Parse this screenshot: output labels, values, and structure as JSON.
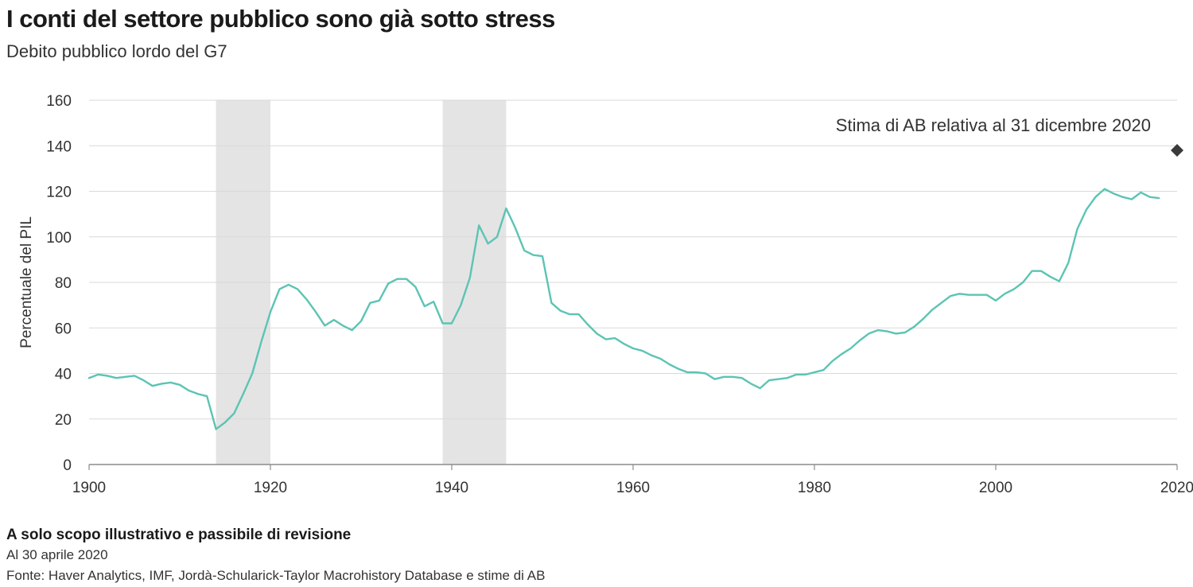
{
  "header": {
    "title": "I conti del settore pubblico sono già sotto stress",
    "subtitle": "Debito pubblico lordo del G7"
  },
  "footer": {
    "note": "A solo scopo illustrativo e passibile di revisione",
    "date": "Al 30 aprile 2020",
    "source": "Fonte: Haver Analytics, IMF, Jordà-Schularick-Taylor Macrohistory Database e stime di AB"
  },
  "colors": {
    "line": "#5cc4b4",
    "shade": "#e4e4e4",
    "grid": "#d9d9d9",
    "marker": "#3a3a3a"
  },
  "chart_data": {
    "type": "line",
    "ylabel": "Percentuale del PIL",
    "xlim": [
      1900,
      2020
    ],
    "ylim": [
      0,
      160
    ],
    "x_ticks": [
      1900,
      1920,
      1940,
      1960,
      1980,
      2000,
      2020
    ],
    "y_ticks": [
      0,
      20,
      40,
      60,
      80,
      100,
      120,
      140,
      160
    ],
    "grid": true,
    "shaded_periods": [
      {
        "start": 1914,
        "end": 1920
      },
      {
        "start": 1939,
        "end": 1946
      }
    ],
    "series": [
      {
        "x": [
          1900,
          1901,
          1902,
          1903,
          1904,
          1905,
          1906,
          1907,
          1908,
          1909,
          1910,
          1911,
          1912,
          1913,
          1914,
          1915,
          1916,
          1917,
          1918,
          1919,
          1920,
          1921,
          1922,
          1923,
          1924,
          1925,
          1926,
          1927,
          1928,
          1929,
          1930,
          1931,
          1932,
          1933,
          1934,
          1935,
          1936,
          1937,
          1938,
          1939,
          1940,
          1941,
          1942,
          1943,
          1944,
          1945,
          1946,
          1947,
          1948,
          1949,
          1950,
          1951,
          1952,
          1953,
          1954,
          1955,
          1956,
          1957,
          1958,
          1959,
          1960,
          1961,
          1962,
          1963,
          1964,
          1965,
          1966,
          1967,
          1968,
          1969,
          1970,
          1971,
          1972,
          1973,
          1974,
          1975,
          1976,
          1977,
          1978,
          1979,
          1980,
          1981,
          1982,
          1983,
          1984,
          1985,
          1986,
          1987,
          1988,
          1989,
          1990,
          1991,
          1992,
          1993,
          1994,
          1995,
          1996,
          1997,
          1998,
          1999,
          2000,
          2001,
          2002,
          2003,
          2004,
          2005,
          2006,
          2007,
          2008,
          2009,
          2010,
          2011,
          2012,
          2013,
          2014,
          2015,
          2016,
          2017,
          2018
        ],
        "values": [
          38,
          39.5,
          39,
          38,
          38.5,
          39,
          37,
          34.5,
          35.5,
          36,
          35,
          32.5,
          31,
          30,
          15.5,
          18.5,
          22.5,
          31,
          40,
          54,
          67,
          77,
          79,
          77,
          72.5,
          67,
          61,
          63.5,
          61,
          59,
          63,
          71,
          72,
          79.5,
          81.5,
          81.5,
          78,
          69.5,
          71.5,
          62,
          62,
          70,
          82,
          105,
          97,
          100,
          112.5,
          104,
          94,
          92,
          91.5,
          71,
          67.5,
          66,
          66,
          61.5,
          57.5,
          55,
          55.5,
          53,
          51,
          50,
          48,
          46.5,
          44,
          42,
          40.5,
          40.5,
          40,
          37.5,
          38.5,
          38.5,
          38,
          35.5,
          33.5,
          37,
          37.5,
          38,
          39.5,
          39.5,
          40.5,
          41.5,
          45.5,
          48.5,
          51,
          54.5,
          57.5,
          59,
          58.5,
          57.5,
          58,
          60.5,
          64,
          68,
          71,
          74,
          75,
          74.5,
          74.5,
          74.5,
          72,
          75,
          77,
          80,
          85,
          85,
          82.5,
          80.5,
          88.5,
          103.5,
          112,
          117.5,
          121,
          119,
          117.5,
          116.5,
          119.5,
          117.5,
          117
        ]
      }
    ],
    "annotations": [
      {
        "label": "Stima di AB relativa al 31 dicembre 2020",
        "x": 2020,
        "y": 138
      }
    ]
  }
}
